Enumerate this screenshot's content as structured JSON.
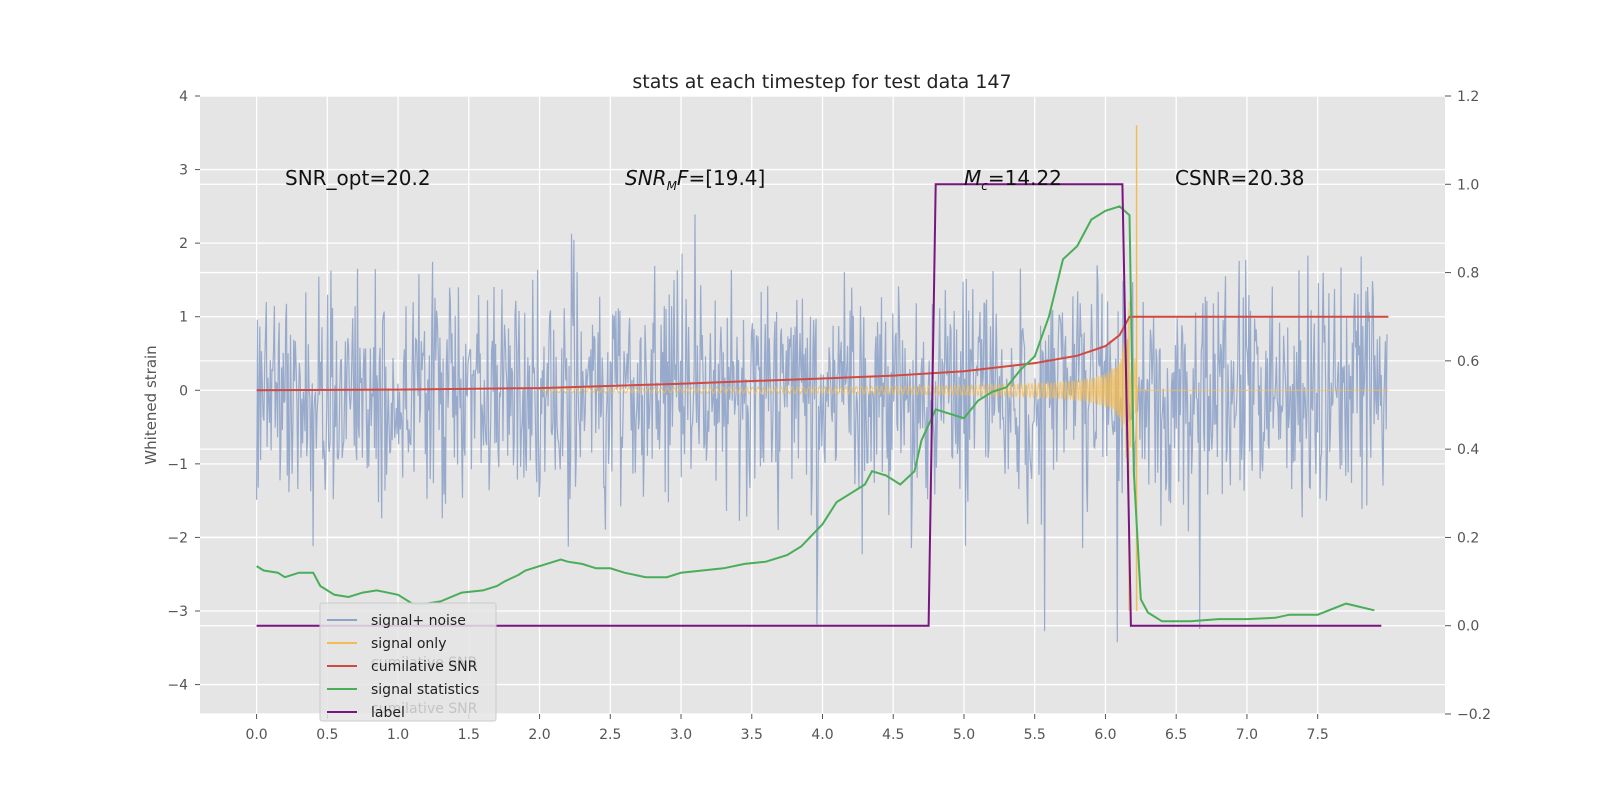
{
  "chart_data": {
    "type": "line",
    "title": "stats at each timestep for test data 147",
    "ylabel": "Whitened strain",
    "xlabel": "",
    "xlim": [
      -0.4,
      8.4
    ],
    "ylim": [
      -4.4,
      4.0
    ],
    "y2lim": [
      -0.2,
      1.2
    ],
    "x_ticks": [
      "0.0",
      "0.5",
      "1.0",
      "1.5",
      "2.0",
      "2.5",
      "3.0",
      "3.5",
      "4.0",
      "4.5",
      "5.0",
      "5.5",
      "6.0",
      "6.5",
      "7.0",
      "7.5"
    ],
    "y_ticks": [
      "4",
      "3",
      "2",
      "1",
      "0",
      "−1",
      "−2",
      "−3",
      "−4"
    ],
    "y2_ticks": [
      "1.2",
      "1.0",
      "0.8",
      "0.6",
      "0.4",
      "0.2",
      "0.0",
      "−0.2"
    ],
    "grid": true,
    "background": "#e5e5e5",
    "legend_position": "lower-left",
    "annotations": {
      "snr_opt": "SNR_opt=20.2",
      "snr_mf_base": "SNR",
      "snr_mf_sub": "M",
      "snr_mf_f": "F",
      "snr_mf_val": "=[19.4]",
      "mc_base": "M",
      "mc_sub": "c",
      "mc_val": "=14.22",
      "csnr": "CSNR=20.38"
    },
    "series": [
      {
        "name": "signal+ noise",
        "color": "#8fa3c8",
        "axis": "left",
        "amplitude_envelope": 2.2,
        "x_range": [
          0.0,
          7.99
        ]
      },
      {
        "name": "signal only",
        "color": "#f2bb55",
        "axis": "left",
        "chirp_end": 6.17,
        "peak": 3.6
      },
      {
        "name": "cumilative SNR",
        "color": "#d04a42",
        "axis": "left",
        "x": [
          0.0,
          1.0,
          2.0,
          3.0,
          4.0,
          4.5,
          5.0,
          5.5,
          5.8,
          6.0,
          6.1,
          6.17,
          6.2,
          8.0
        ],
        "y": [
          0.0,
          0.01,
          0.03,
          0.09,
          0.16,
          0.2,
          0.26,
          0.37,
          0.47,
          0.6,
          0.75,
          1.0,
          1.0,
          1.0
        ]
      },
      {
        "name": "signal statistics",
        "color": "#4aad58",
        "axis": "right",
        "x": [
          0.0,
          0.05,
          0.15,
          0.2,
          0.3,
          0.4,
          0.45,
          0.55,
          0.65,
          0.75,
          0.85,
          1.0,
          1.1,
          1.2,
          1.3,
          1.45,
          1.6,
          1.7,
          1.75,
          1.85,
          1.9,
          1.95,
          2.05,
          2.15,
          2.2,
          2.3,
          2.4,
          2.5,
          2.6,
          2.75,
          2.9,
          3.0,
          3.15,
          3.3,
          3.45,
          3.6,
          3.75,
          3.85,
          4.0,
          4.1,
          4.2,
          4.3,
          4.35,
          4.45,
          4.55,
          4.65,
          4.7,
          4.8,
          4.9,
          5.0,
          5.1,
          5.2,
          5.3,
          5.4,
          5.5,
          5.6,
          5.7,
          5.8,
          5.9,
          6.0,
          6.1,
          6.17,
          6.2,
          6.25,
          6.3,
          6.4,
          6.5,
          6.6,
          6.8,
          7.0,
          7.2,
          7.3,
          7.4,
          7.5,
          7.7,
          7.9
        ],
        "y": [
          0.135,
          0.125,
          0.12,
          0.11,
          0.12,
          0.12,
          0.09,
          0.07,
          0.065,
          0.075,
          0.08,
          0.07,
          0.05,
          0.05,
          0.055,
          0.075,
          0.08,
          0.09,
          0.1,
          0.115,
          0.125,
          0.13,
          0.14,
          0.15,
          0.145,
          0.14,
          0.13,
          0.13,
          0.12,
          0.11,
          0.11,
          0.12,
          0.125,
          0.13,
          0.14,
          0.145,
          0.16,
          0.18,
          0.23,
          0.28,
          0.3,
          0.32,
          0.35,
          0.34,
          0.32,
          0.35,
          0.42,
          0.49,
          0.48,
          0.47,
          0.51,
          0.53,
          0.54,
          0.58,
          0.61,
          0.7,
          0.83,
          0.86,
          0.92,
          0.94,
          0.95,
          0.93,
          0.35,
          0.06,
          0.03,
          0.01,
          0.01,
          0.01,
          0.015,
          0.015,
          0.018,
          0.025,
          0.025,
          0.025,
          0.05,
          0.035
        ]
      },
      {
        "name": "label",
        "color": "#7a1580",
        "axis": "right",
        "x": [
          0.0,
          4.75,
          4.8,
          6.12,
          6.18,
          7.95
        ],
        "y": [
          0.0,
          0.0,
          1.0,
          1.0,
          0.0,
          0.0
        ]
      }
    ],
    "legend_ghost_text": "cumilative SNR"
  }
}
